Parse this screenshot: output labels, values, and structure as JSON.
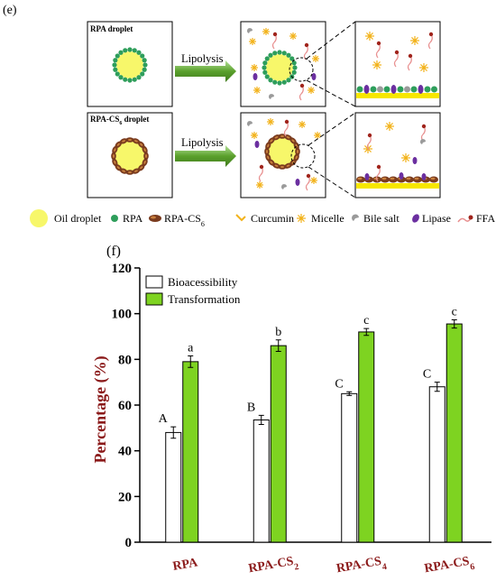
{
  "panel_e": {
    "label": "(e)",
    "rows": [
      {
        "title": "RPA droplet",
        "arrow_label": "Lipolysis"
      },
      {
        "title": "RPA-CS6 droplet",
        "title_base": "RPA-CS",
        "title_sub": "6",
        "title_tail": " droplet",
        "arrow_label": "Lipolysis"
      }
    ],
    "legend": [
      {
        "label": "Oil droplet",
        "icon": "oil-droplet-icon"
      },
      {
        "label": "RPA",
        "icon": "rpa-icon"
      },
      {
        "label": "RPA-CS6",
        "label_base": "RPA-CS",
        "label_sub": "6",
        "icon": "rpa-cs6-icon"
      },
      {
        "label": "Curcumin",
        "icon": "curcumin-icon"
      },
      {
        "label": "Micelle",
        "icon": "micelle-icon"
      },
      {
        "label": "Bile salt",
        "icon": "bile-salt-icon"
      },
      {
        "label": "Lipase",
        "icon": "lipase-icon"
      },
      {
        "label": "FFA",
        "icon": "ffa-icon"
      }
    ],
    "colors": {
      "oil": "#f7f76a",
      "rpa": "#2e9e5b",
      "rpa_cs6": "#7a3b1e",
      "micelle": "#f2b21a",
      "lipase": "#6b2fa0",
      "ffa": "#a0241c",
      "bile": "#9a9a9a",
      "arrow": "#5aa02c"
    }
  },
  "panel_f": {
    "label": "(f)",
    "chart_data": {
      "type": "bar",
      "categories": [
        "RPA",
        "RPA-CS2",
        "RPA-CS4",
        "RPA-CS6"
      ],
      "category_parts": [
        {
          "base": "RPA",
          "sub": ""
        },
        {
          "base": "RPA-CS",
          "sub": "2"
        },
        {
          "base": "RPA-CS",
          "sub": "4"
        },
        {
          "base": "RPA-CS",
          "sub": "6"
        }
      ],
      "series": [
        {
          "name": "Bioacessibility",
          "values": [
            48,
            53.5,
            65,
            68
          ],
          "errors": [
            2.5,
            2,
            0.8,
            2
          ],
          "letters": [
            "A",
            "B",
            "C",
            "C"
          ],
          "color": "#ffffff"
        },
        {
          "name": "Transformation",
          "values": [
            79,
            86,
            92,
            95.5
          ],
          "errors": [
            2.5,
            2.5,
            1.5,
            1.8
          ],
          "letters": [
            "a",
            "b",
            "c",
            "c"
          ],
          "color": "#7ed321"
        }
      ],
      "ylabel": "Percentage (%)",
      "ylim": [
        0,
        120
      ],
      "yticks": [
        0,
        20,
        40,
        60,
        80,
        100,
        120
      ],
      "legend_position": "top-left",
      "grid": false
    }
  }
}
